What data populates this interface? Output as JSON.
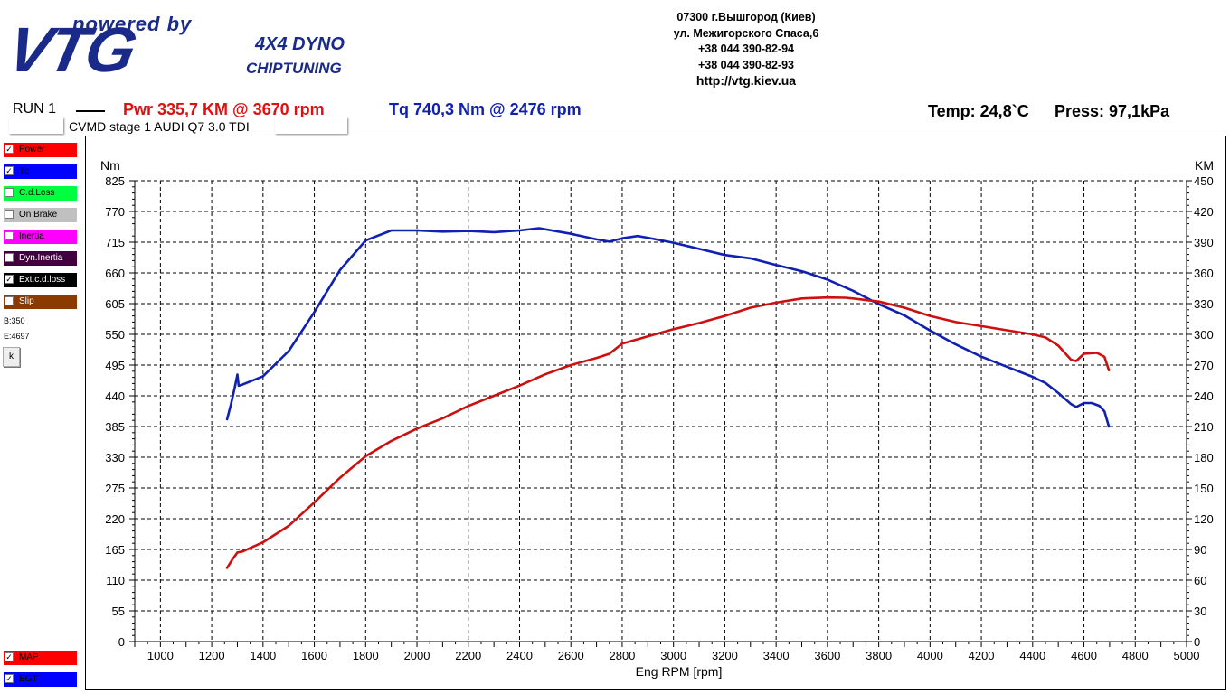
{
  "header": {
    "logo_powered": "powered by",
    "logo_vtg": "VTG",
    "logo_dyno": "4X4 DYNO",
    "logo_chip": "CHIPTUNING",
    "address": [
      "07300 г.Вышгород (Киев)",
      "ул. Межигорского Спаса,6",
      "+38 044 390-82-94",
      "+38 044 390-82-93"
    ],
    "url": "http://vtg.kiev.ua"
  },
  "run": {
    "label": "RUN 1",
    "pwr": "Pwr  335,7 KM @ 3670 rpm",
    "tq": "Tq 740,3 Nm @ 2476 rpm",
    "temp": "Temp: 24,8`C",
    "press": "Press: 97,1kPa",
    "description": "CVMD  stage 1 AUDI Q7 3.0 TDI"
  },
  "legend": [
    {
      "label": "Power",
      "checked": true,
      "color": "#ff0000"
    },
    {
      "label": "Tq",
      "checked": true,
      "color": "#0000ff"
    },
    {
      "label": "C.d.Loss",
      "checked": false,
      "color": "#00ff40"
    },
    {
      "label": "On Brake",
      "checked": false,
      "color": "#c0c0c0"
    },
    {
      "label": "Inertia",
      "checked": false,
      "color": "#ff00ff"
    },
    {
      "label": "Dyn.Inertia",
      "checked": false,
      "color": "#400040"
    },
    {
      "label": "Ext.c.d.loss",
      "checked": true,
      "color": "#000000"
    },
    {
      "label": "Slip",
      "checked": false,
      "color": "#8b3a00"
    }
  ],
  "legend_bottom": [
    {
      "label": "MAP",
      "checked": true,
      "color": "#ff0000"
    },
    {
      "label": "EGT",
      "checked": true,
      "color": "#0000ff"
    }
  ],
  "info": {
    "b": "B:350",
    "e": "E:4697",
    "button": "k"
  },
  "chart_data": {
    "type": "line",
    "xlabel": "Eng RPM [rpm]",
    "ylabel_left": "Nm",
    "ylabel_right": "KM",
    "xlim": [
      900,
      5000
    ],
    "x_ticks": [
      1000,
      1200,
      1400,
      1600,
      1800,
      2000,
      2200,
      2400,
      2600,
      2800,
      3000,
      3200,
      3400,
      3600,
      3800,
      4000,
      4200,
      4400,
      4600,
      4800,
      5000
    ],
    "ylim_left": [
      0,
      825
    ],
    "y_ticks_left": [
      0,
      55,
      110,
      165,
      220,
      275,
      330,
      385,
      440,
      495,
      550,
      605,
      660,
      715,
      770,
      825
    ],
    "ylim_right": [
      0,
      450
    ],
    "y_ticks_right": [
      0,
      30,
      60,
      90,
      120,
      150,
      180,
      210,
      240,
      270,
      300,
      330,
      360,
      390,
      420,
      450
    ],
    "grid": true,
    "series": [
      {
        "name": "Tq",
        "axis": "left",
        "color": "#1020b0",
        "points": [
          [
            1260,
            398
          ],
          [
            1275,
            425
          ],
          [
            1290,
            455
          ],
          [
            1300,
            478
          ],
          [
            1305,
            458
          ],
          [
            1320,
            460
          ],
          [
            1400,
            475
          ],
          [
            1500,
            520
          ],
          [
            1600,
            590
          ],
          [
            1700,
            665
          ],
          [
            1800,
            718
          ],
          [
            1900,
            736
          ],
          [
            2000,
            736
          ],
          [
            2100,
            734
          ],
          [
            2200,
            735
          ],
          [
            2300,
            733
          ],
          [
            2400,
            736
          ],
          [
            2476,
            740
          ],
          [
            2600,
            730
          ],
          [
            2700,
            720
          ],
          [
            2750,
            716
          ],
          [
            2800,
            722
          ],
          [
            2860,
            726
          ],
          [
            2900,
            723
          ],
          [
            3000,
            714
          ],
          [
            3100,
            703
          ],
          [
            3200,
            692
          ],
          [
            3300,
            686
          ],
          [
            3400,
            674
          ],
          [
            3500,
            663
          ],
          [
            3600,
            648
          ],
          [
            3700,
            628
          ],
          [
            3800,
            604
          ],
          [
            3900,
            584
          ],
          [
            4000,
            557
          ],
          [
            4100,
            532
          ],
          [
            4200,
            510
          ],
          [
            4300,
            492
          ],
          [
            4400,
            474
          ],
          [
            4450,
            463
          ],
          [
            4500,
            445
          ],
          [
            4550,
            425
          ],
          [
            4570,
            420
          ],
          [
            4600,
            427
          ],
          [
            4630,
            427
          ],
          [
            4660,
            422
          ],
          [
            4680,
            412
          ],
          [
            4697,
            385
          ]
        ]
      },
      {
        "name": "Power",
        "axis": "right",
        "color": "#cc1010",
        "points": [
          [
            1260,
            72
          ],
          [
            1280,
            80
          ],
          [
            1300,
            87
          ],
          [
            1320,
            88
          ],
          [
            1400,
            97
          ],
          [
            1500,
            113
          ],
          [
            1600,
            136
          ],
          [
            1700,
            160
          ],
          [
            1800,
            181
          ],
          [
            1900,
            196
          ],
          [
            2000,
            208
          ],
          [
            2100,
            218
          ],
          [
            2200,
            230
          ],
          [
            2300,
            240
          ],
          [
            2400,
            250
          ],
          [
            2500,
            261
          ],
          [
            2600,
            270
          ],
          [
            2700,
            277
          ],
          [
            2750,
            281
          ],
          [
            2800,
            291
          ],
          [
            2900,
            298
          ],
          [
            3000,
            305
          ],
          [
            3100,
            311
          ],
          [
            3200,
            318
          ],
          [
            3300,
            326
          ],
          [
            3400,
            331
          ],
          [
            3500,
            335
          ],
          [
            3600,
            336
          ],
          [
            3670,
            335.7
          ],
          [
            3700,
            335
          ],
          [
            3800,
            332
          ],
          [
            3900,
            326
          ],
          [
            4000,
            318
          ],
          [
            4100,
            312
          ],
          [
            4200,
            308
          ],
          [
            4300,
            304
          ],
          [
            4400,
            300
          ],
          [
            4450,
            297
          ],
          [
            4500,
            289
          ],
          [
            4550,
            275
          ],
          [
            4570,
            274
          ],
          [
            4600,
            281
          ],
          [
            4650,
            282
          ],
          [
            4680,
            278
          ],
          [
            4697,
            265
          ]
        ]
      }
    ]
  }
}
